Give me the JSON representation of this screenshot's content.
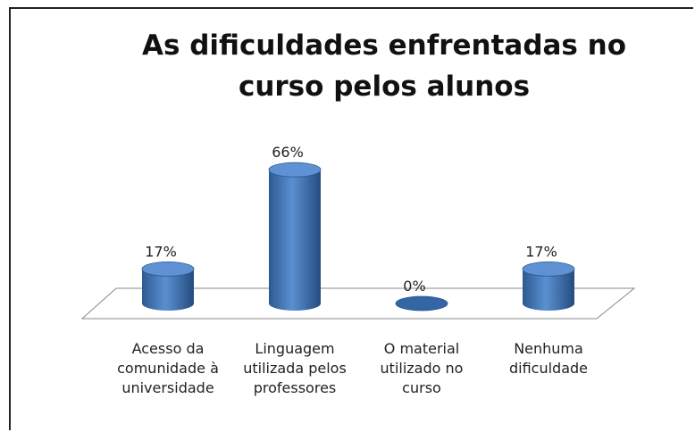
{
  "chart_data": {
    "type": "bar",
    "title": "As dificuldades enfrentadas no curso pelos alunos",
    "categories": [
      "Acesso da comunidade à universidade",
      "Linguagem utilizada pelos professores",
      "O material utilizado no curso",
      "Nenhuma dificuldade"
    ],
    "values": [
      17,
      66,
      0,
      17
    ],
    "value_labels": [
      "17%",
      "66%",
      "0%",
      "17%"
    ],
    "color": "#4a7ebb"
  }
}
